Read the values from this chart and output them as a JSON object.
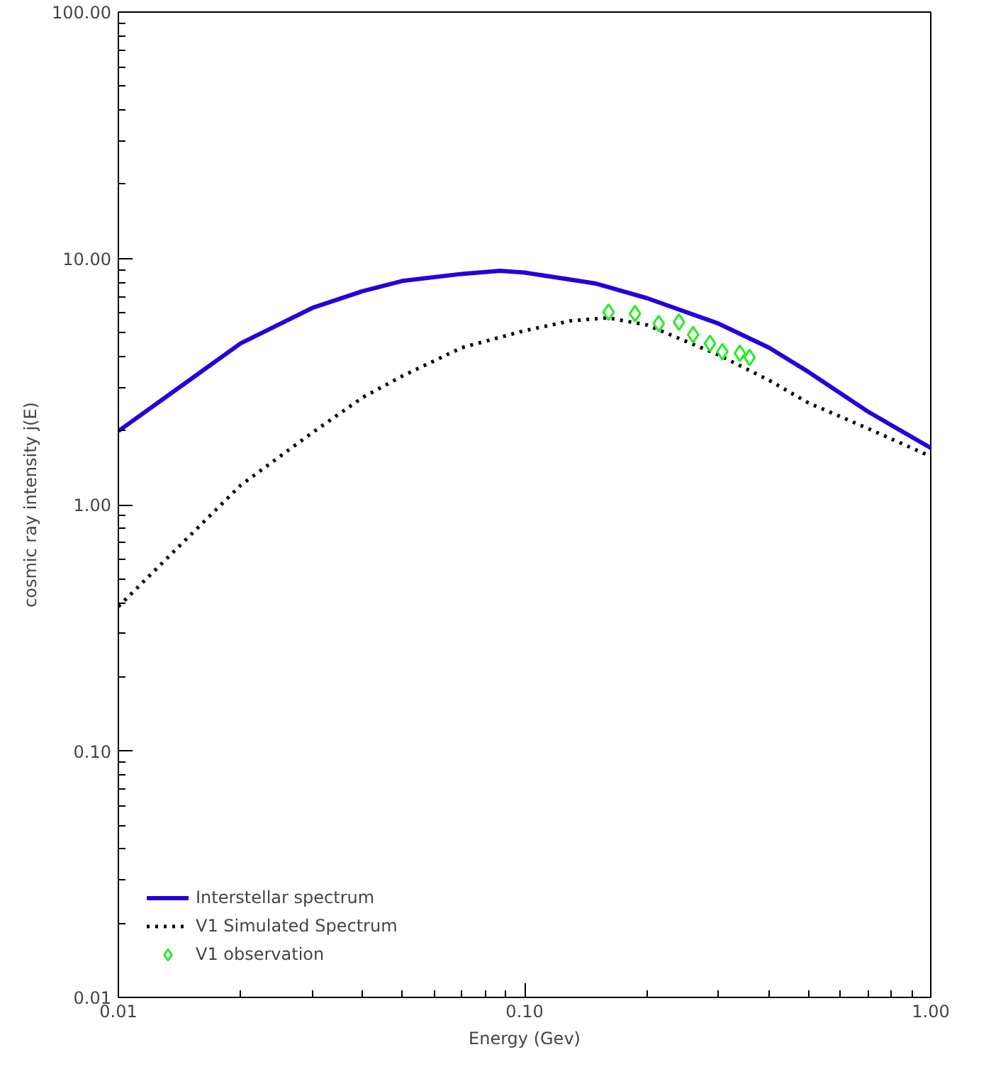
{
  "chart_data": {
    "type": "line",
    "xlabel": "Energy (Gev)",
    "ylabel": "cosmic ray intensity j(E)",
    "log": "xy",
    "xlim": [
      0.01,
      1.0
    ],
    "ylim": [
      0.01,
      100.0
    ],
    "xticks": [
      {
        "value": 0.01,
        "label": "0.01"
      },
      {
        "value": 0.1,
        "label": "0.10"
      },
      {
        "value": 1.0,
        "label": "1.00"
      }
    ],
    "yticks": [
      {
        "value": 0.01,
        "label": "0.01"
      },
      {
        "value": 0.1,
        "label": "0.10"
      },
      {
        "value": 1.0,
        "label": "1.00"
      },
      {
        "value": 10.0,
        "label": "10.00"
      },
      {
        "value": 100.0,
        "label": "100.00"
      }
    ],
    "grid": false,
    "legend": "bottom left",
    "series": [
      {
        "name": "Interstellar spectrum",
        "color": "#2200dd",
        "line_style": "solid",
        "marker": "none",
        "x": [
          0.01,
          0.02,
          0.03,
          0.04,
          0.05,
          0.07,
          0.087,
          0.1,
          0.15,
          0.2,
          0.3,
          0.4,
          0.5,
          0.7,
          1.0
        ],
        "values": [
          1.99,
          4.52,
          6.29,
          7.37,
          8.1,
          8.65,
          8.9,
          8.76,
          7.9,
          6.9,
          5.44,
          4.34,
          3.46,
          2.39,
          1.7
        ]
      },
      {
        "name": "V1 Simulated Spectrum",
        "color": "#000000",
        "line_style": "dotted",
        "marker": "none",
        "x": [
          0.01,
          0.02,
          0.03,
          0.04,
          0.05,
          0.07,
          0.1,
          0.13,
          0.16,
          0.2,
          0.3,
          0.4,
          0.5,
          0.7,
          1.0
        ],
        "values": [
          0.386,
          1.2,
          1.96,
          2.73,
          3.33,
          4.34,
          5.09,
          5.58,
          5.74,
          5.37,
          4.06,
          3.2,
          2.59,
          2.04,
          1.57
        ]
      },
      {
        "name": "V1 observation",
        "type": "scatter",
        "color": "#22ee22",
        "marker": "diamond",
        "x": [
          0.161,
          0.187,
          0.214,
          0.24,
          0.26,
          0.286,
          0.307,
          0.339,
          0.358
        ],
        "values": [
          6.05,
          5.97,
          5.44,
          5.51,
          4.9,
          4.52,
          4.18,
          4.12,
          3.96
        ]
      }
    ]
  }
}
